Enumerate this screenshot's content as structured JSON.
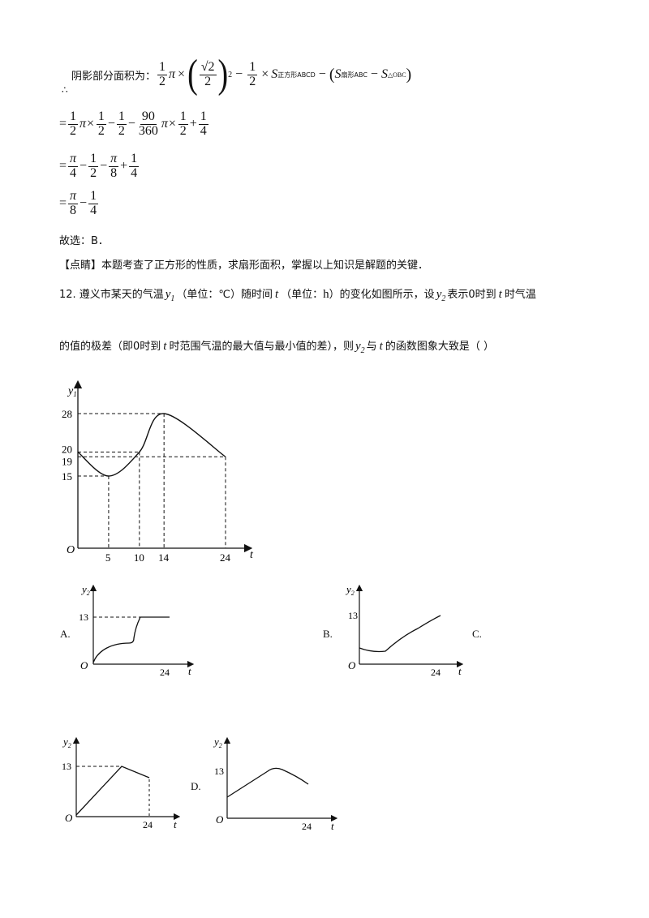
{
  "solution": {
    "intro": "阴影部分面积为：",
    "therefore": "∴",
    "line1_parts": [
      "1",
      "2",
      "π",
      "×",
      "√2",
      "2",
      "2",
      "−",
      "1",
      "2",
      "×",
      "S",
      "正方形ABCD",
      "−",
      "(",
      "S",
      "扇形ABC",
      "−",
      "S",
      "△OBC",
      ")"
    ],
    "line2": [
      "=",
      "1",
      "2",
      "π×",
      "1",
      "2",
      "−",
      "1",
      "2",
      "−",
      "90",
      "360",
      "π×",
      "1",
      "2",
      "+",
      "1",
      "4"
    ],
    "line3": [
      "=",
      "π",
      "4",
      "−",
      "1",
      "2",
      "−",
      "π",
      "8",
      "+",
      "1",
      "4"
    ],
    "line4": [
      "=",
      "π",
      "8",
      "−",
      "1",
      "4"
    ],
    "answer": "故选：B．",
    "comment": "【点睛】本题考查了正方形的性质，求扇形面积，掌握以上知识是解题的关键．"
  },
  "question": {
    "number": "12.",
    "text_a": "遵义市某天的气温",
    "var_y1": "y",
    "var_y1_sub": "1",
    "text_b": "（单位：℃）随时间",
    "var_t": "t",
    "text_c": "（单位：",
    "unit_h": "h",
    "text_d": "）的变化如图所示，设",
    "var_y2": "y",
    "var_y2_sub": "2",
    "text_e": "表示0时到",
    "text_f": "时气温",
    "line2_a": "的值的极差（即0时到",
    "line2_b": "时范围气温的最大值与最小值的差），则",
    "line2_c": "与",
    "line2_d": "的函数图象大致是（      ）"
  },
  "main_graph": {
    "y_label": "y",
    "y_sub": "1",
    "x_label": "t",
    "origin": "O",
    "y_ticks": [
      "28",
      "20",
      "19",
      "15"
    ],
    "x_ticks": [
      "5",
      "10",
      "14",
      "24"
    ]
  },
  "chart_data": [
    {
      "type": "line",
      "x": [
        0,
        5,
        10,
        14,
        24
      ],
      "y": [
        20,
        15,
        20,
        28,
        19
      ],
      "xlabel": "t",
      "ylabel": "y1",
      "x_ticks": [
        5,
        10,
        14,
        24
      ],
      "y_ticks": [
        15,
        19,
        20,
        28
      ]
    },
    {
      "type": "line",
      "x_ticks": [
        24
      ],
      "y_ticks": [
        13
      ],
      "xlabel": "t",
      "ylabel": "y2"
    },
    {
      "type": "line",
      "x_ticks": [
        24
      ],
      "y_ticks": [
        13
      ],
      "xlabel": "t",
      "ylabel": "y2"
    },
    {
      "type": "line",
      "x_ticks": [
        24
      ],
      "y_ticks": [
        13
      ],
      "xlabel": "t",
      "ylabel": "y2"
    },
    {
      "type": "line",
      "x_ticks": [
        24
      ],
      "y_ticks": [
        13
      ],
      "xlabel": "t",
      "ylabel": "y2"
    }
  ],
  "options": {
    "A": "A.",
    "B": "B.",
    "C": "C.",
    "D": "D.",
    "y_label": "y",
    "y_sub": "2",
    "x_label": "t",
    "origin": "O",
    "y_tick": "13",
    "x_tick": "24"
  }
}
